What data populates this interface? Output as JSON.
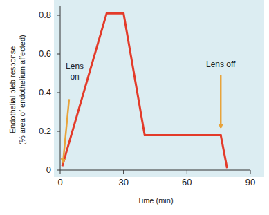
{
  "chart_data": {
    "type": "line",
    "x_label": "Time (min)",
    "y_label": [
      "Endothelial bleb response",
      "(% area of endothelium affected)"
    ],
    "x": [
      1,
      22,
      30,
      40,
      76,
      79
    ],
    "values": [
      0.02,
      0.81,
      0.81,
      0.18,
      0.18,
      0.01
    ],
    "color": "#e33b2a",
    "xlim": [
      0,
      90
    ],
    "xticks": [
      0,
      30,
      60,
      90
    ],
    "ylim": [
      0,
      0.85
    ],
    "yticks": [
      0,
      0.2,
      0.4,
      0.6,
      0.8
    ],
    "grid": false,
    "annotations": [
      {
        "lines": [
          "Lens",
          "on"
        ],
        "x": 1,
        "y": 0.02
      },
      {
        "lines": [
          "Lens off"
        ],
        "x": 76,
        "y": 0.2
      }
    ]
  }
}
